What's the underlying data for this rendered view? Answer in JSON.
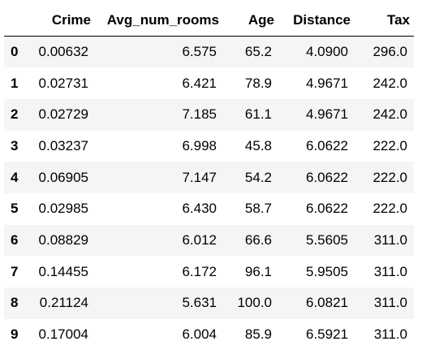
{
  "table": {
    "columns": [
      "",
      "Crime",
      "Avg_num_rooms",
      "Age",
      "Distance",
      "Tax"
    ],
    "rows": [
      {
        "index": "0",
        "cells": [
          "0.00632",
          "6.575",
          "65.2",
          "4.0900",
          "296.0"
        ]
      },
      {
        "index": "1",
        "cells": [
          "0.02731",
          "6.421",
          "78.9",
          "4.9671",
          "242.0"
        ]
      },
      {
        "index": "2",
        "cells": [
          "0.02729",
          "7.185",
          "61.1",
          "4.9671",
          "242.0"
        ]
      },
      {
        "index": "3",
        "cells": [
          "0.03237",
          "6.998",
          "45.8",
          "6.0622",
          "222.0"
        ]
      },
      {
        "index": "4",
        "cells": [
          "0.06905",
          "7.147",
          "54.2",
          "6.0622",
          "222.0"
        ]
      },
      {
        "index": "5",
        "cells": [
          "0.02985",
          "6.430",
          "58.7",
          "6.0622",
          "222.0"
        ]
      },
      {
        "index": "6",
        "cells": [
          "0.08829",
          "6.012",
          "66.6",
          "5.5605",
          "311.0"
        ]
      },
      {
        "index": "7",
        "cells": [
          "0.14455",
          "6.172",
          "96.1",
          "5.9505",
          "311.0"
        ]
      },
      {
        "index": "8",
        "cells": [
          "0.21124",
          "5.631",
          "100.0",
          "6.0821",
          "311.0"
        ]
      },
      {
        "index": "9",
        "cells": [
          "0.17004",
          "6.004",
          "85.9",
          "6.5921",
          "311.0"
        ]
      }
    ]
  },
  "colors": {
    "stripe": "#f5f5f5",
    "background": "#ffffff",
    "text": "#000000"
  }
}
